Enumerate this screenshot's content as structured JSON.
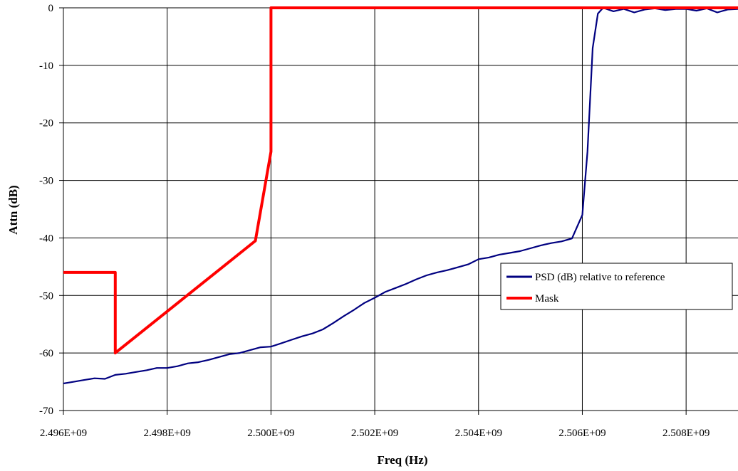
{
  "chart_data": {
    "type": "line",
    "title": "",
    "xlabel": "Freq (Hz)",
    "ylabel": "Attn (dB)",
    "xlim": [
      2496000000,
      2509000000
    ],
    "ylim": [
      -70,
      0
    ],
    "x_ticks": [
      2496000000,
      2498000000,
      2500000000,
      2502000000,
      2504000000,
      2506000000,
      2508000000
    ],
    "x_tick_labels": [
      "2.496E+09",
      "2.498E+09",
      "2.500E+09",
      "2.502E+09",
      "2.504E+09",
      "2.506E+09",
      "2.508E+09"
    ],
    "y_ticks": [
      0,
      -10,
      -20,
      -30,
      -40,
      -50,
      -60,
      -70
    ],
    "y_tick_labels": [
      "0",
      "-10",
      "-20",
      "-30",
      "-40",
      "-50",
      "-60",
      "-70"
    ],
    "grid": true,
    "legend_position": "right",
    "series": [
      {
        "name": "PSD (dB) relative to reference",
        "color": "#000080",
        "x": [
          2496000000,
          2496200000,
          2496400000,
          2496600000,
          2496800000,
          2497000000,
          2497200000,
          2497400000,
          2497600000,
          2497800000,
          2498000000,
          2498200000,
          2498400000,
          2498600000,
          2498800000,
          2499000000,
          2499200000,
          2499400000,
          2499600000,
          2499800000,
          2500000000,
          2500200000,
          2500400000,
          2500600000,
          2500800000,
          2501000000,
          2501200000,
          2501400000,
          2501600000,
          2501800000,
          2502000000,
          2502200000,
          2502400000,
          2502600000,
          2502800000,
          2503000000,
          2503200000,
          2503400000,
          2503600000,
          2503800000,
          2504000000,
          2504200000,
          2504400000,
          2504600000,
          2504800000,
          2505000000,
          2505200000,
          2505400000,
          2505600000,
          2505800000,
          2506000000,
          2506100000,
          2506200000,
          2506300000,
          2506400000,
          2506600000,
          2506800000,
          2507000000,
          2507200000,
          2507400000,
          2507600000,
          2507800000,
          2508000000,
          2508200000,
          2508400000,
          2508600000,
          2508800000,
          2509000000
        ],
        "y": [
          -65.3,
          -65.0,
          -64.7,
          -64.4,
          -64.5,
          -63.8,
          -63.6,
          -63.3,
          -63.0,
          -62.6,
          -62.6,
          -62.3,
          -61.8,
          -61.6,
          -61.2,
          -60.7,
          -60.2,
          -60.0,
          -59.5,
          -59.0,
          -58.9,
          -58.3,
          -57.7,
          -57.1,
          -56.6,
          -55.9,
          -54.8,
          -53.6,
          -52.5,
          -51.3,
          -50.4,
          -49.4,
          -48.7,
          -48.0,
          -47.2,
          -46.5,
          -46.0,
          -45.6,
          -45.1,
          -44.6,
          -43.7,
          -43.4,
          -42.9,
          -42.6,
          -42.3,
          -41.8,
          -41.3,
          -40.9,
          -40.6,
          -40.1,
          -36.0,
          -25.0,
          -7.0,
          -1.0,
          0.0,
          -0.6,
          -0.2,
          -0.8,
          -0.3,
          -0.1,
          -0.4,
          -0.2,
          -0.2,
          -0.5,
          -0.1,
          -0.8,
          -0.3,
          -0.2
        ]
      },
      {
        "name": "Mask",
        "color": "#ff0000",
        "x": [
          2496000000,
          2497000000,
          2497000000,
          2499700000,
          2500000000,
          2500000000,
          2509000000
        ],
        "y": [
          -46,
          -46,
          -60,
          -40.5,
          -25,
          0,
          0
        ]
      }
    ]
  }
}
